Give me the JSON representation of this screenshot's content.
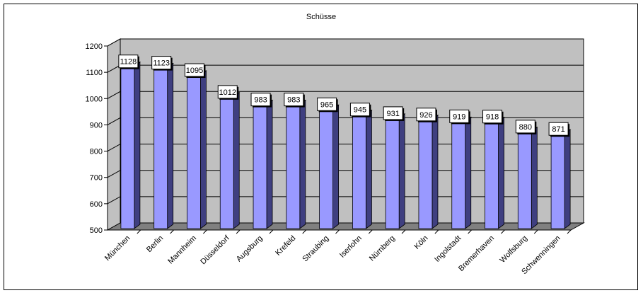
{
  "chart_data": {
    "type": "bar",
    "title": "Schüsse",
    "categories": [
      "München",
      "Berlin",
      "Mannheim",
      "Düsseldorf",
      "Augsburg",
      "Krefeld",
      "Straubing",
      "Iserlohn",
      "Nürnberg",
      "Köln",
      "Ingolstadt",
      "Bremerhaven",
      "Wolfsburg",
      "Schwenningen"
    ],
    "values": [
      1128,
      1123,
      1095,
      1012,
      983,
      983,
      965,
      945,
      931,
      926,
      919,
      918,
      880,
      871
    ],
    "ylim": [
      500,
      1200
    ],
    "yticks": [
      "500",
      "600",
      "700",
      "800",
      "900",
      "1000",
      "1100",
      "1200"
    ],
    "grid": true,
    "three_d": true,
    "legend": "none",
    "colors": {
      "bar_front": "#9999ff",
      "bar_side": "#3f3f80",
      "bar_top": "#c8c8ff",
      "back_wall": "#c0c0c0",
      "floor": "#808080",
      "label_box": "#ffffff"
    }
  }
}
